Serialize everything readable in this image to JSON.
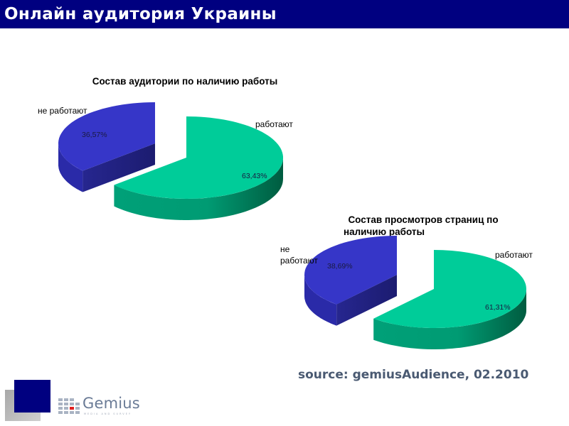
{
  "header": {
    "title": "Онлайн аудитория Украины",
    "background": "#000080"
  },
  "charts": [
    {
      "title": "Состав аудитории по наличию работы",
      "labels": {
        "not_working": "не работают",
        "working": "работают"
      },
      "percents": {
        "not_working": "36,57%",
        "working": "63,43%"
      }
    },
    {
      "title_line1": "Состав просмотров страниц по",
      "title_line2": "наличию работы",
      "labels": {
        "not_working_line1": "не",
        "not_working_line2": "работают",
        "working": "работают"
      },
      "percents": {
        "not_working": "38,69%",
        "working": "61,31%"
      }
    }
  ],
  "footer": {
    "source": "source: gemiusAudience, 02.2010",
    "logo_text": "Gemius",
    "logo_sub": "MEDIA AND SURVEY"
  },
  "chart_data": [
    {
      "type": "pie",
      "title": "Состав аудитории по наличию работы",
      "categories": [
        "работают",
        "не работают"
      ],
      "values": [
        63.43,
        36.57
      ],
      "colors": [
        "#00cc99",
        "#3636c8"
      ],
      "exploded": [
        "не работают"
      ],
      "style": "3d",
      "value_format": "percent"
    },
    {
      "type": "pie",
      "title": "Состав просмотров страниц по наличию работы",
      "categories": [
        "работают",
        "не работают"
      ],
      "values": [
        61.31,
        38.69
      ],
      "colors": [
        "#00cc99",
        "#3636c8"
      ],
      "exploded": [
        "не работают"
      ],
      "style": "3d",
      "value_format": "percent"
    }
  ]
}
